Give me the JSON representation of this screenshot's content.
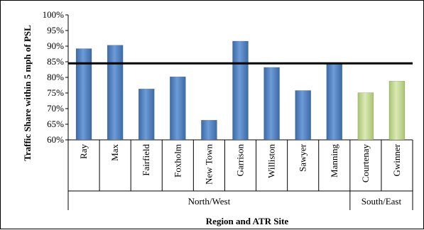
{
  "chart_data": {
    "type": "bar",
    "ylabel": "Traffic Share within 5 mph of PSL",
    "xlabel": "Region and ATR Site",
    "ylim": [
      60,
      100
    ],
    "yticks": [
      "60%",
      "65%",
      "70%",
      "75%",
      "80%",
      "85%",
      "90%",
      "95%",
      "100%"
    ],
    "categories": [
      "Ray",
      "Max",
      "Fairfield",
      "Foxholm",
      "New Town",
      "Garrison",
      "Williston",
      "Sawyer",
      "Manning",
      "Courtenay",
      "Gwinner"
    ],
    "values": [
      89.2,
      90.3,
      76.3,
      80.2,
      66.3,
      91.6,
      83.2,
      75.8,
      84.4,
      75.1,
      78.8
    ],
    "groups": [
      {
        "name": "North/West",
        "count": 9,
        "color": "#4f81bd"
      },
      {
        "name": "South/East",
        "count": 2,
        "color": "#c4d79b"
      }
    ],
    "reference_line": 84.5,
    "grid": false,
    "legend": "none"
  }
}
